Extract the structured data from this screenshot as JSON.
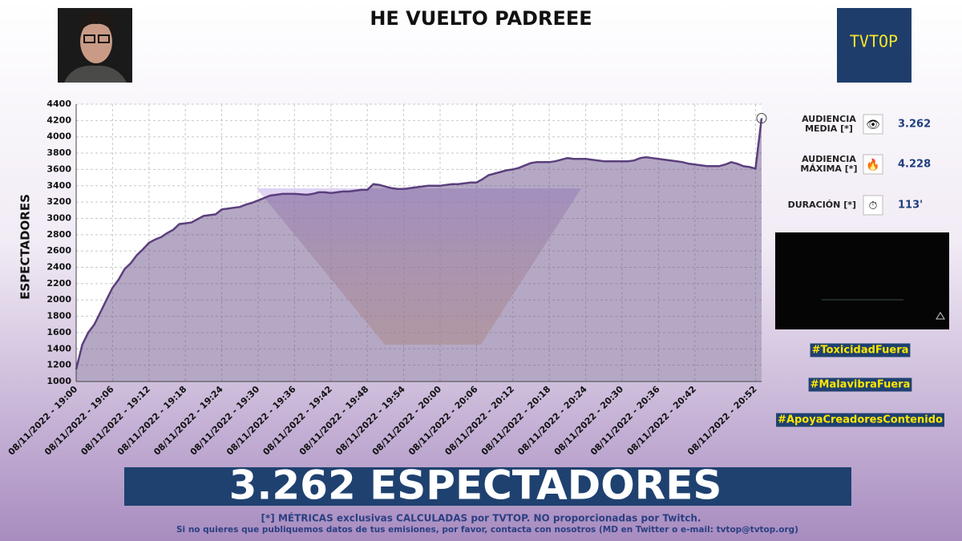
{
  "header": {
    "title": "HE VUELTO PADREEE",
    "logo": "TVTOP"
  },
  "chart_data": {
    "type": "line",
    "y_label": "ESPECTADORES",
    "categories": [
      "08/11/2022 - 19:00",
      null,
      null,
      null,
      null,
      null,
      "08/11/2022 - 19:06",
      null,
      null,
      null,
      null,
      null,
      "08/11/2022 - 19:12",
      null,
      null,
      null,
      null,
      null,
      "08/11/2022 - 19:18",
      null,
      null,
      null,
      null,
      null,
      "08/11/2022 - 19:24",
      null,
      null,
      null,
      null,
      null,
      "08/11/2022 - 19:30",
      null,
      null,
      null,
      null,
      null,
      "08/11/2022 - 19:36",
      null,
      null,
      null,
      null,
      null,
      "08/11/2022 - 19:42",
      null,
      null,
      null,
      null,
      null,
      "08/11/2022 - 19:48",
      null,
      null,
      null,
      null,
      null,
      "08/11/2022 - 19:54",
      null,
      null,
      null,
      null,
      null,
      "08/11/2022 - 20:00",
      null,
      null,
      null,
      null,
      null,
      "08/11/2022 - 20:06",
      null,
      null,
      null,
      null,
      null,
      "08/11/2022 - 20:12",
      null,
      null,
      null,
      null,
      null,
      "08/11/2022 - 20:18",
      null,
      null,
      null,
      null,
      null,
      "08/11/2022 - 20:24",
      null,
      null,
      null,
      null,
      null,
      "08/11/2022 - 20:30",
      null,
      null,
      null,
      null,
      null,
      "08/11/2022 - 20:36",
      null,
      null,
      null,
      null,
      null,
      "08/11/2022 - 20:42",
      null,
      null,
      null,
      null,
      null,
      null,
      null,
      null,
      null,
      "08/11/2022 - 20:52",
      null
    ],
    "values": [
      1150,
      1450,
      1600,
      1700,
      1850,
      2000,
      2150,
      2250,
      2380,
      2450,
      2550,
      2620,
      2700,
      2740,
      2770,
      2820,
      2860,
      2930,
      2940,
      2950,
      2990,
      3030,
      3040,
      3050,
      3110,
      3120,
      3130,
      3140,
      3170,
      3190,
      3220,
      3250,
      3280,
      3290,
      3300,
      3300,
      3300,
      3295,
      3290,
      3300,
      3320,
      3320,
      3310,
      3320,
      3330,
      3330,
      3340,
      3350,
      3350,
      3420,
      3410,
      3390,
      3370,
      3360,
      3360,
      3370,
      3380,
      3390,
      3400,
      3400,
      3400,
      3410,
      3420,
      3420,
      3430,
      3440,
      3440,
      3480,
      3530,
      3550,
      3570,
      3590,
      3600,
      3620,
      3650,
      3680,
      3690,
      3690,
      3690,
      3700,
      3720,
      3740,
      3730,
      3730,
      3730,
      3720,
      3710,
      3700,
      3700,
      3700,
      3700,
      3700,
      3710,
      3740,
      3750,
      3740,
      3730,
      3720,
      3710,
      3700,
      3690,
      3670,
      3660,
      3650,
      3640,
      3640,
      3640,
      3660,
      3690,
      3670,
      3640,
      3630,
      3610,
      4228
    ],
    "color": "#5b3f7d",
    "ylim": [
      1000,
      4400
    ],
    "yticks": [
      1000,
      1200,
      1400,
      1600,
      1800,
      2000,
      2200,
      2400,
      2600,
      2800,
      3000,
      3200,
      3400,
      3600,
      3800,
      4000,
      4200,
      4400
    ],
    "grid": true
  },
  "stats": [
    {
      "label": [
        "AUDIENCIA",
        "MEDIA [*]"
      ],
      "value": "3.262"
    },
    {
      "label": [
        "AUDIENCIA",
        "MÁXIMA [*]"
      ],
      "value": "4.228"
    },
    {
      "label": [
        "DURACIÓN [*]"
      ],
      "value": "113'"
    }
  ],
  "hashtags": [
    "#ToxicidadFuera",
    "#MalavibraFuera",
    "#ApoyaCreadoresContenido"
  ],
  "banner": "3.262 ESPECTADORES",
  "footer": [
    "[*] MÉTRICAS exclusivas CALCULADAS por TVTOP. NO proporcionadas por Twitch.",
    "Si no quieres que publiquemos datos de tus emisiones, por favor, contacta con nosotros (MD en Twitter o e-mail: tvtop@tvtop.org)"
  ]
}
